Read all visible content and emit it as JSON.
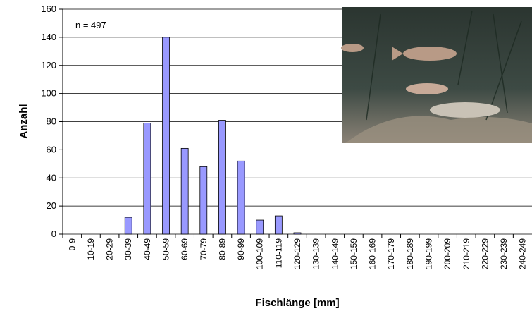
{
  "chart_data": {
    "type": "bar",
    "annotation": "n = 497",
    "x_label": "Fischlänge [mm]",
    "y_label": "Anzahl",
    "categories": [
      "0-9",
      "10-19",
      "20-29",
      "30-39",
      "40-49",
      "50-59",
      "60-69",
      "70-79",
      "80-89",
      "90-99",
      "100-109",
      "110-119",
      "120-129",
      "130-139",
      "140-149",
      "150-159",
      "160-169",
      "170-179",
      "180-189",
      "190-199",
      "200-209",
      "210-219",
      "220-229",
      "230-239",
      "240-249"
    ],
    "values": [
      0,
      0,
      0,
      12,
      79,
      140,
      61,
      48,
      81,
      52,
      10,
      13,
      1,
      0,
      0,
      0,
      0,
      0,
      0,
      0,
      0,
      0,
      0,
      0,
      0
    ],
    "color": "#9999ff",
    "ylim": [
      0,
      160
    ],
    "yticks": [
      0,
      20,
      40,
      60,
      80,
      100,
      120,
      140,
      160
    ],
    "grid": true
  }
}
